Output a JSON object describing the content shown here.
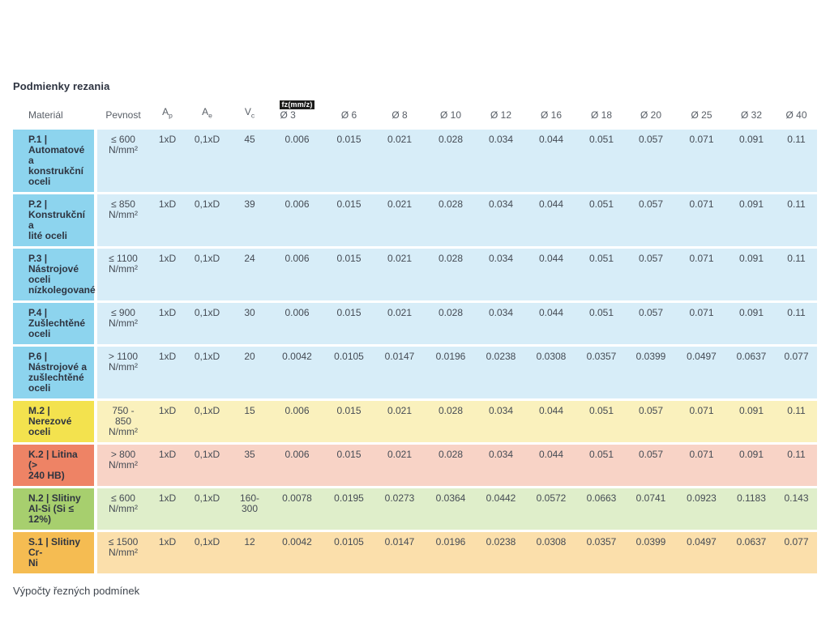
{
  "page": {
    "title": "Podmienky rezania",
    "footer": "Výpočty řezných podmínek"
  },
  "colors": {
    "blue": {
      "label": "#8dd4ee",
      "body": "#d7edf8"
    },
    "yellow": {
      "label": "#f3e24e",
      "body": "#faf1bd"
    },
    "red": {
      "label": "#ee8365",
      "body": "#f8d3c6"
    },
    "green": {
      "label": "#a7cf6e",
      "body": "#dfeeca"
    },
    "orange": {
      "label": "#f5bc52",
      "body": "#fbdfab"
    }
  },
  "table": {
    "headers": {
      "material": "Materiál",
      "pevnost": "Pevnost",
      "ap": {
        "base": "A",
        "sub": "p"
      },
      "ae": {
        "base": "A",
        "sub": "e"
      },
      "vc": {
        "base": "V",
        "sub": "c"
      },
      "fz_badge": "fz(mm/z)",
      "diameters": [
        "Ø 3",
        "Ø 6",
        "Ø 8",
        "Ø 10",
        "Ø 12",
        "Ø 16",
        "Ø 18",
        "Ø 20",
        "Ø 25",
        "Ø 32",
        "Ø 40"
      ]
    },
    "rows": [
      {
        "group": "blue",
        "material": "P.1 |\nAutomatové a\nkonstrukční\noceli",
        "pevnost": "≤ 600\nN/mm²",
        "ap": "1xD",
        "ae": "0,1xD",
        "vc": "45",
        "fz": [
          "0.006",
          "0.015",
          "0.021",
          "0.028",
          "0.034",
          "0.044",
          "0.051",
          "0.057",
          "0.071",
          "0.091",
          "0.11"
        ]
      },
      {
        "group": "blue",
        "material": "P.2 |\nKonstrukční a\nlité oceli",
        "pevnost": "≤ 850\nN/mm²",
        "ap": "1xD",
        "ae": "0,1xD",
        "vc": "39",
        "fz": [
          "0.006",
          "0.015",
          "0.021",
          "0.028",
          "0.034",
          "0.044",
          "0.051",
          "0.057",
          "0.071",
          "0.091",
          "0.11"
        ]
      },
      {
        "group": "blue",
        "material": "P.3 |\nNástrojové\noceli\nnízkolegované",
        "pevnost": "≤ 1100\nN/mm²",
        "ap": "1xD",
        "ae": "0,1xD",
        "vc": "24",
        "fz": [
          "0.006",
          "0.015",
          "0.021",
          "0.028",
          "0.034",
          "0.044",
          "0.051",
          "0.057",
          "0.071",
          "0.091",
          "0.11"
        ]
      },
      {
        "group": "blue",
        "material": "P.4 |\nZušlechtěné\noceli",
        "pevnost": "≤ 900\nN/mm²",
        "ap": "1xD",
        "ae": "0,1xD",
        "vc": "30",
        "fz": [
          "0.006",
          "0.015",
          "0.021",
          "0.028",
          "0.034",
          "0.044",
          "0.051",
          "0.057",
          "0.071",
          "0.091",
          "0.11"
        ]
      },
      {
        "group": "blue",
        "material": "P.6 |\nNástrojové a\nzušlechtěné\noceli",
        "pevnost": "> 1100\nN/mm²",
        "ap": "1xD",
        "ae": "0,1xD",
        "vc": "20",
        "fz": [
          "0.0042",
          "0.0105",
          "0.0147",
          "0.0196",
          "0.0238",
          "0.0308",
          "0.0357",
          "0.0399",
          "0.0497",
          "0.0637",
          "0.077"
        ]
      },
      {
        "group": "yellow",
        "material": "M.2 |\nNerezové\noceli",
        "pevnost": "750 -\n850\nN/mm²",
        "ap": "1xD",
        "ae": "0,1xD",
        "vc": "15",
        "fz": [
          "0.006",
          "0.015",
          "0.021",
          "0.028",
          "0.034",
          "0.044",
          "0.051",
          "0.057",
          "0.071",
          "0.091",
          "0.11"
        ]
      },
      {
        "group": "red",
        "material": "K.2 | Litina (>\n240 HB)",
        "pevnost": "> 800\nN/mm²",
        "ap": "1xD",
        "ae": "0,1xD",
        "vc": "35",
        "fz": [
          "0.006",
          "0.015",
          "0.021",
          "0.028",
          "0.034",
          "0.044",
          "0.051",
          "0.057",
          "0.071",
          "0.091",
          "0.11"
        ]
      },
      {
        "group": "green",
        "material": "N.2 | Slitiny\nAl-Si (Si ≤\n12%)",
        "pevnost": "≤ 600\nN/mm²",
        "ap": "1xD",
        "ae": "0,1xD",
        "vc": "160-\n300",
        "fz": [
          "0.0078",
          "0.0195",
          "0.0273",
          "0.0364",
          "0.0442",
          "0.0572",
          "0.0663",
          "0.0741",
          "0.0923",
          "0.1183",
          "0.143"
        ]
      },
      {
        "group": "orange",
        "material": "S.1 | Slitiny Cr-\nNi",
        "pevnost": "≤ 1500\nN/mm²",
        "ap": "1xD",
        "ae": "0,1xD",
        "vc": "12",
        "fz": [
          "0.0042",
          "0.0105",
          "0.0147",
          "0.0196",
          "0.0238",
          "0.0308",
          "0.0357",
          "0.0399",
          "0.0497",
          "0.0637",
          "0.077"
        ]
      }
    ]
  }
}
